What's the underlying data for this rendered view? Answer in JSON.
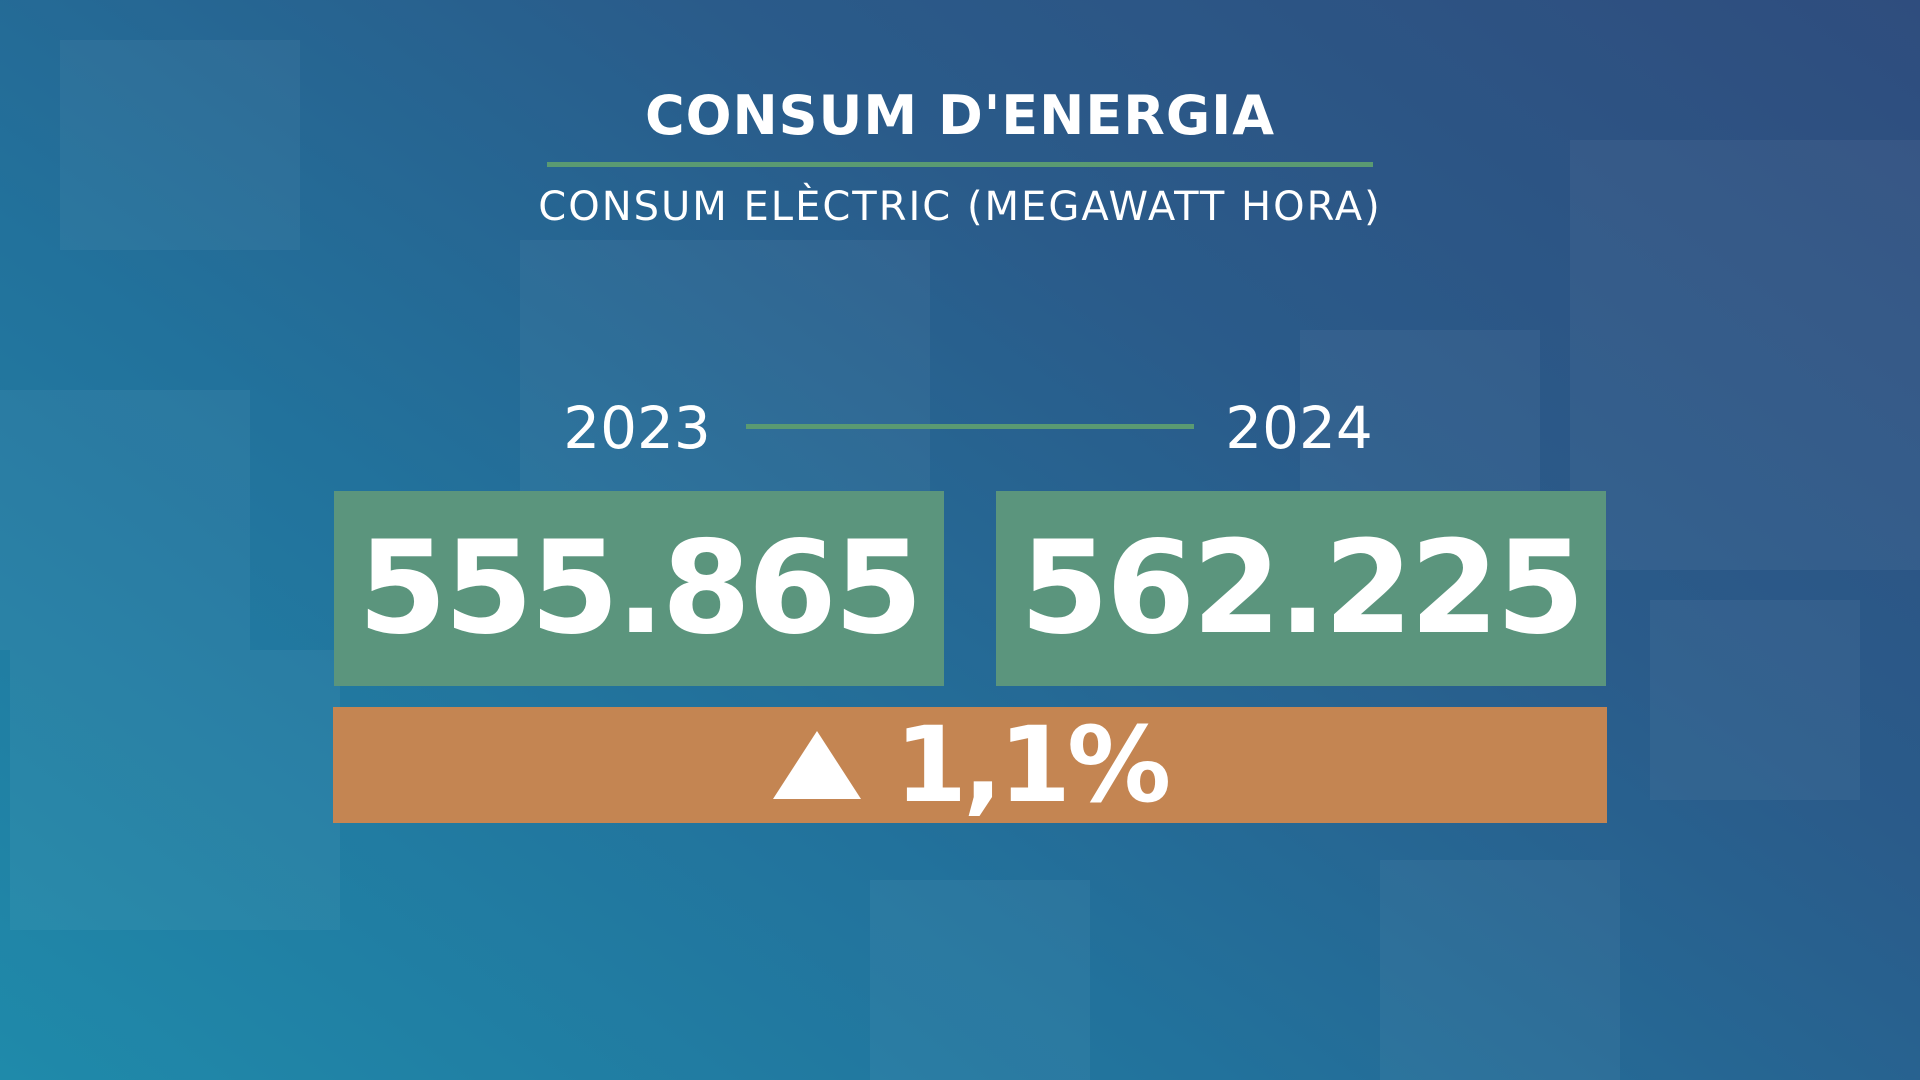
{
  "header": {
    "title": "CONSUM D'ENERGIA",
    "subtitle": "CONSUM ELÈCTRIC (MEGAWATT HORA)"
  },
  "comparison": {
    "years": [
      "2023",
      "2024"
    ],
    "values": [
      "555.865",
      "562.225"
    ],
    "change": "1,1%"
  }
}
